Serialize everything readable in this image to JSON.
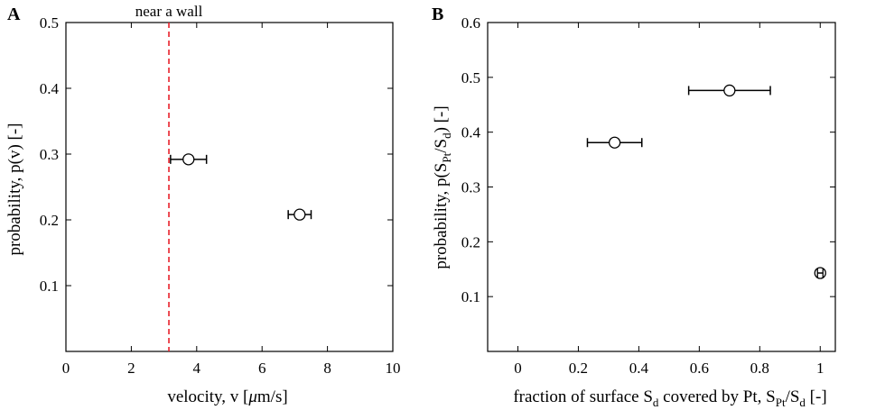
{
  "colors": {
    "annotation": "#e8202a",
    "ink": "#000000"
  },
  "chart_data": [
    {
      "type": "scatter",
      "panel_label": "A",
      "xlabel_parts": {
        "pre": "velocity, v [",
        "greek": "μ",
        "post": "m/s]"
      },
      "ylabel": "probability, p(v) [-]",
      "xlim": [
        0,
        10
      ],
      "ylim": [
        0,
        0.5
      ],
      "xticks": [
        0,
        2,
        4,
        6,
        8,
        10
      ],
      "yticks": [
        0.1,
        0.2,
        0.3,
        0.4,
        0.5
      ],
      "grid": false,
      "points": [
        {
          "x": 3.75,
          "y": 0.292,
          "xerr": 0.55
        },
        {
          "x": 7.15,
          "y": 0.208,
          "xerr": 0.35
        }
      ],
      "vline": {
        "x": 3.15,
        "style": "dashed",
        "label": "near a wall"
      }
    },
    {
      "type": "scatter",
      "panel_label": "B",
      "xlabel_parts": {
        "pre": "fraction of surface S",
        "sub1": "d",
        "mid": " covered by Pt, S",
        "sub2": "Pt",
        "slash": "/S",
        "sub3": "d",
        "post": " [-]"
      },
      "ylabel_parts": {
        "pre": "probability, p(S",
        "sub1": "Pt",
        "slash": "/S",
        "sub2": "d",
        "post": ") [-]"
      },
      "xlim": [
        -0.1,
        1.05
      ],
      "ylim": [
        0,
        0.6
      ],
      "xticks": [
        0,
        0.2,
        0.4,
        0.6,
        0.8,
        1
      ],
      "yticks": [
        0.1,
        0.2,
        0.3,
        0.4,
        0.5,
        0.6
      ],
      "grid": false,
      "points": [
        {
          "x": 0.32,
          "y": 0.381,
          "xerr": 0.09
        },
        {
          "x": 0.7,
          "y": 0.476,
          "xerr": 0.135
        },
        {
          "x": 1.0,
          "y": 0.143,
          "xerr": 0
        }
      ]
    }
  ]
}
